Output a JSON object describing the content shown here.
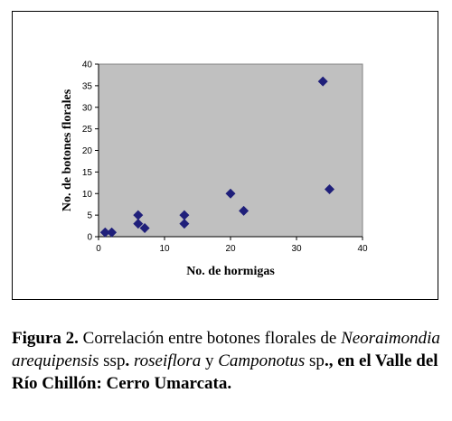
{
  "chart_data": {
    "type": "scatter",
    "xlabel": "No. de hormigas",
    "ylabel": "No. de botones florales",
    "xlim": [
      0,
      40
    ],
    "ylim": [
      0,
      40
    ],
    "xticks": [
      0,
      10,
      20,
      30,
      40
    ],
    "yticks": [
      0,
      5,
      10,
      15,
      20,
      25,
      30,
      35,
      40
    ],
    "x_tick_labels": [
      "0",
      "10",
      "20",
      "30",
      "40"
    ],
    "y_tick_labels": [
      "0",
      "5",
      "10",
      "15",
      "20",
      "25",
      "30",
      "35",
      "40"
    ],
    "grid": false,
    "legend": false,
    "plot_background": "#c0c0c0",
    "marker": "diamond",
    "marker_color": "#1f1f7a",
    "points": [
      {
        "x": 1,
        "y": 1
      },
      {
        "x": 2,
        "y": 1
      },
      {
        "x": 6,
        "y": 5
      },
      {
        "x": 6,
        "y": 3
      },
      {
        "x": 7,
        "y": 2
      },
      {
        "x": 13,
        "y": 5
      },
      {
        "x": 13,
        "y": 3
      },
      {
        "x": 20,
        "y": 10
      },
      {
        "x": 22,
        "y": 6
      },
      {
        "x": 34,
        "y": 36
      },
      {
        "x": 35,
        "y": 11
      }
    ]
  },
  "caption": {
    "label": "Figura 2.",
    "text_1": " Correlación entre botones florales de ",
    "species_1": "Neoraimondia arequipensis",
    "text_2": " ssp",
    "text_3": ". ",
    "species_2": "roseiflora",
    "text_4": " y ",
    "species_3": "Camponotus",
    "text_5": " sp",
    "text_6": "., en el Valle del Río Chillón: Cerro Umarcata."
  }
}
